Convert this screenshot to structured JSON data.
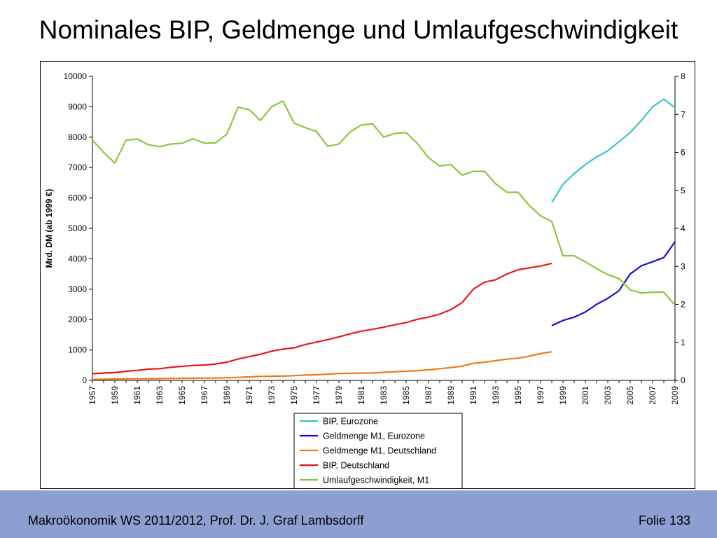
{
  "slide": {
    "title": "Nominales BIP, Geldmenge und Umlaufgeschwindigkeit",
    "footer_left": "Makroökonomik WS 2011/2012, Prof. Dr. J. Graf Lambsdorff",
    "footer_right": "Folie 133",
    "footer_color": "#8d9ed1"
  },
  "chart_data": {
    "type": "line",
    "ylabel": "Mrd. DM (ab 1999 €)",
    "ylim": [
      0,
      10000
    ],
    "yticks": [
      0,
      1000,
      2000,
      3000,
      4000,
      5000,
      6000,
      7000,
      8000,
      9000,
      10000
    ],
    "y2lim": [
      0,
      8
    ],
    "y2ticks": [
      0,
      1,
      2,
      3,
      4,
      5,
      6,
      7,
      8
    ],
    "xlim": [
      1957,
      2009
    ],
    "xticks": [
      1957,
      1959,
      1961,
      1963,
      1965,
      1967,
      1969,
      1971,
      1973,
      1975,
      1977,
      1979,
      1981,
      1983,
      1985,
      1987,
      1989,
      1991,
      1993,
      1995,
      1997,
      1999,
      2001,
      2003,
      2005,
      2007,
      2009
    ],
    "grid": false,
    "legend_position": "bottom-center",
    "series": [
      {
        "name": "BIP, Eurozone",
        "axis": "left",
        "color": "#33c7c7",
        "x": [
          1998,
          1999,
          2000,
          2001,
          2002,
          2003,
          2004,
          2005,
          2006,
          2007,
          2008,
          2009
        ],
        "values": [
          5850,
          6450,
          6800,
          7100,
          7350,
          7550,
          7850,
          8150,
          8550,
          9000,
          9250,
          8970
        ]
      },
      {
        "name": "Geldmenge M1, Eurozone",
        "axis": "left",
        "color": "#1111cc",
        "x": [
          1998,
          1999,
          2000,
          2001,
          2002,
          2003,
          2004,
          2005,
          2006,
          2007,
          2008,
          2009
        ],
        "values": [
          1800,
          1970,
          2080,
          2250,
          2500,
          2700,
          2950,
          3500,
          3770,
          3900,
          4040,
          4560
        ]
      },
      {
        "name": "Geldmenge M1, Deutschland",
        "axis": "left",
        "color": "#f07a1a",
        "x": [
          1957,
          1958,
          1959,
          1960,
          1961,
          1962,
          1963,
          1964,
          1965,
          1966,
          1967,
          1968,
          1969,
          1970,
          1971,
          1972,
          1973,
          1974,
          1975,
          1976,
          1977,
          1978,
          1979,
          1980,
          1981,
          1982,
          1983,
          1984,
          1985,
          1986,
          1987,
          1988,
          1989,
          1990,
          1991,
          1992,
          1993,
          1994,
          1995,
          1996,
          1997,
          1998
        ],
        "values": [
          30,
          40,
          45,
          50,
          52,
          55,
          58,
          65,
          68,
          72,
          76,
          80,
          88,
          100,
          115,
          130,
          135,
          140,
          155,
          175,
          185,
          205,
          225,
          235,
          240,
          245,
          265,
          285,
          300,
          320,
          345,
          385,
          420,
          470,
          560,
          600,
          650,
          700,
          730,
          800,
          880,
          940
        ]
      },
      {
        "name": "BIP, Deutschland",
        "axis": "left",
        "color": "#e41a1a",
        "x": [
          1957,
          1958,
          1959,
          1960,
          1961,
          1962,
          1963,
          1964,
          1965,
          1966,
          1967,
          1968,
          1969,
          1970,
          1971,
          1972,
          1973,
          1974,
          1975,
          1976,
          1977,
          1978,
          1979,
          1980,
          1981,
          1982,
          1983,
          1984,
          1985,
          1986,
          1987,
          1988,
          1989,
          1990,
          1991,
          1992,
          1993,
          1994,
          1995,
          1996,
          1997,
          1998
        ],
        "values": [
          220,
          240,
          255,
          300,
          330,
          370,
          385,
          430,
          460,
          490,
          505,
          540,
          600,
          700,
          780,
          860,
          960,
          1030,
          1070,
          1180,
          1260,
          1340,
          1430,
          1530,
          1620,
          1680,
          1750,
          1830,
          1900,
          2010,
          2080,
          2180,
          2330,
          2560,
          3000,
          3230,
          3310,
          3500,
          3640,
          3700,
          3760,
          3850
        ]
      },
      {
        "name": "Umlaufgeschwindigkeit, M1",
        "axis": "right",
        "color": "#8cc63e",
        "x": [
          1957,
          1958,
          1959,
          1960,
          1961,
          1962,
          1963,
          1964,
          1965,
          1966,
          1967,
          1968,
          1969,
          1970,
          1971,
          1972,
          1973,
          1974,
          1975,
          1976,
          1977,
          1978,
          1979,
          1980,
          1981,
          1982,
          1983,
          1984,
          1985,
          1986,
          1987,
          1988,
          1989,
          1990,
          1991,
          1992,
          1993,
          1994,
          1995,
          1996,
          1997,
          1998,
          1999,
          2000,
          2001,
          2002,
          2003,
          2004,
          2005,
          2006,
          2007,
          2008,
          2009
        ],
        "values": [
          6.32,
          6.0,
          5.72,
          6.32,
          6.35,
          6.2,
          6.15,
          6.22,
          6.24,
          6.36,
          6.24,
          6.25,
          6.48,
          7.19,
          7.12,
          6.84,
          7.2,
          7.35,
          6.77,
          6.65,
          6.55,
          6.16,
          6.22,
          6.54,
          6.72,
          6.75,
          6.4,
          6.5,
          6.52,
          6.24,
          5.86,
          5.64,
          5.68,
          5.4,
          5.5,
          5.5,
          5.17,
          4.95,
          4.95,
          4.6,
          4.33,
          4.18,
          3.28,
          3.28,
          3.12,
          2.94,
          2.78,
          2.68,
          2.38,
          2.3,
          2.32,
          2.32,
          1.98
        ]
      }
    ]
  }
}
